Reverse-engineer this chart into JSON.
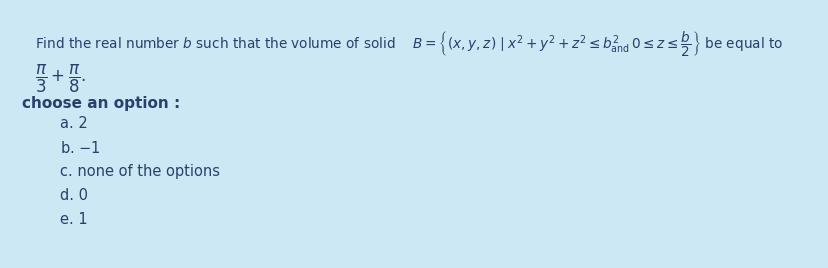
{
  "bg_color": "#cde8f5",
  "text_color": "#2c3e6b",
  "fig_width": 8.29,
  "fig_height": 2.68,
  "dpi": 100,
  "top_line": "Find the real number $b$ such that the volume of solid $\\quad B = \\left\\{ (x, y, z) \\mid x^2 + y^2 + z^2 \\leq b^2_{\\mathrm{and}}\\, 0 \\leq z \\leq \\dfrac{b}{2} \\right\\}$ be equal to",
  "fraction": "$\\dfrac{\\pi}{3} + \\dfrac{\\pi}{8}.$",
  "choose": "choose an option :",
  "options": [
    "a. 2",
    "b. $-1$",
    "c. none of the options",
    "d. 0",
    "e. 1"
  ]
}
